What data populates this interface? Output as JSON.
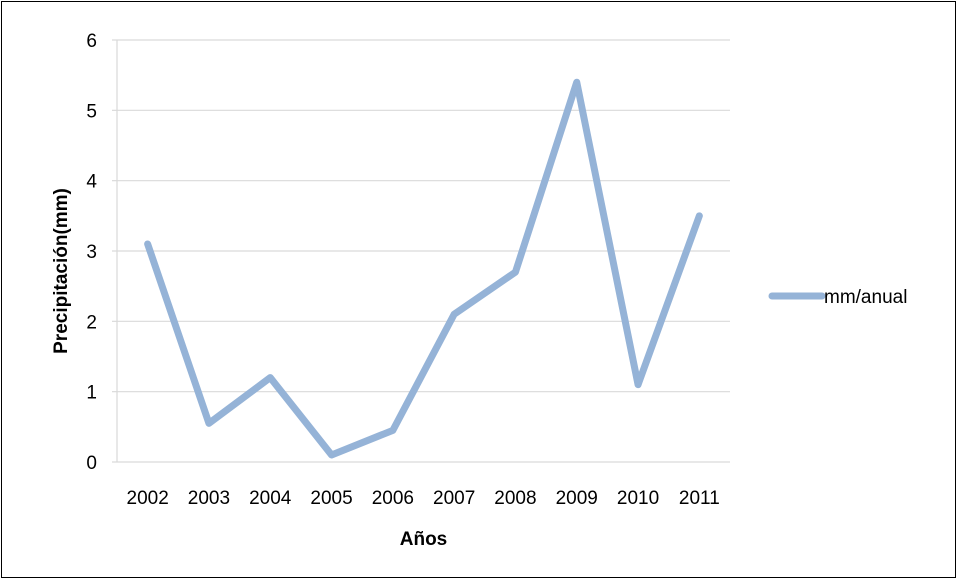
{
  "chart_data": {
    "type": "line",
    "categories": [
      "2002",
      "2003",
      "2004",
      "2005",
      "2006",
      "2007",
      "2008",
      "2009",
      "2010",
      "2011"
    ],
    "series": [
      {
        "name": "mm/anual",
        "values": [
          3.1,
          0.55,
          1.2,
          0.1,
          0.45,
          2.1,
          2.7,
          5.4,
          1.1,
          3.5
        ],
        "color": "#95b3d7"
      }
    ],
    "title": "",
    "xlabel": "Años",
    "ylabel": "Precipitación(mm)",
    "ylim": [
      0,
      6
    ],
    "yticks": [
      "0",
      "1",
      "2",
      "3",
      "4",
      "5",
      "6"
    ],
    "grid": true,
    "gridColor": "#d9d9d9",
    "legend": "right"
  }
}
